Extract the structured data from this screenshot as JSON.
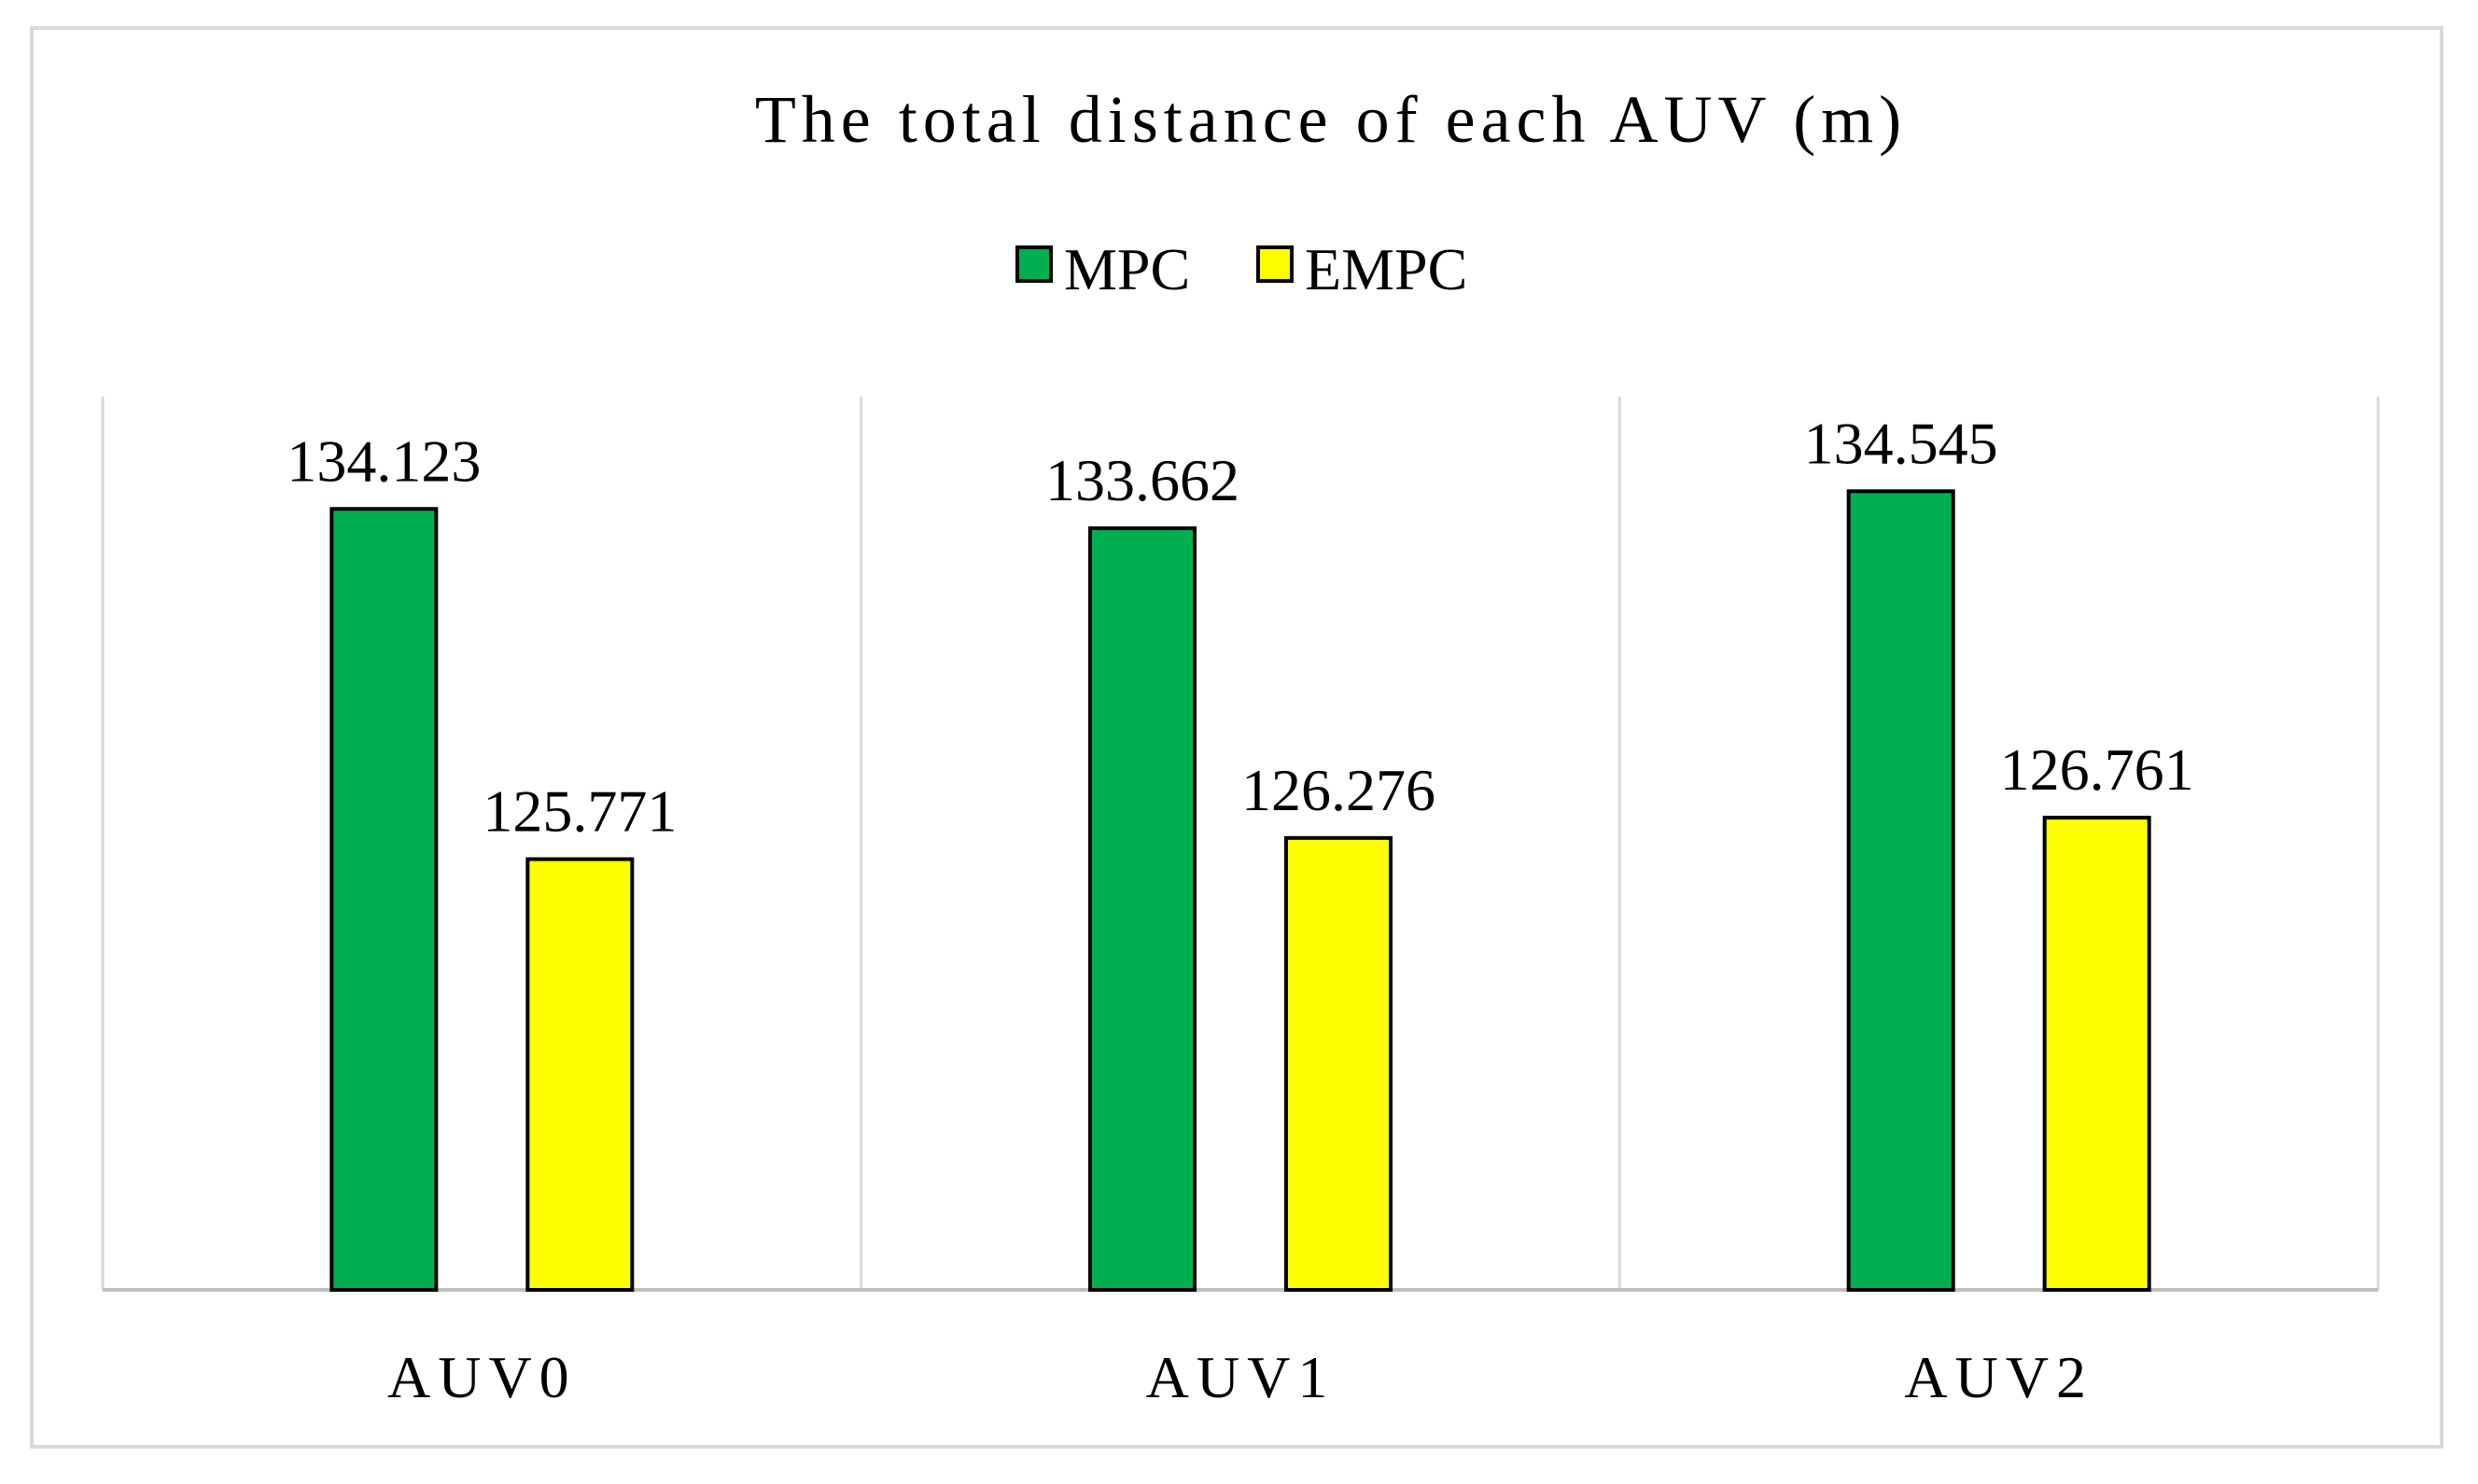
{
  "chart_data": {
    "type": "bar",
    "title": "The total distance of each AUV (m)",
    "categories": [
      "AUV0",
      "AUV1",
      "AUV2"
    ],
    "series": [
      {
        "name": "MPC",
        "color": "#00b050",
        "values": [
          134.123,
          133.662,
          134.545
        ],
        "labels": [
          "134.123",
          "133.662",
          "134.545"
        ]
      },
      {
        "name": "EMPC",
        "color": "#ffff00",
        "values": [
          125.771,
          126.276,
          126.761
        ],
        "labels": [
          "125.771",
          "126.276",
          "126.761"
        ]
      }
    ],
    "xlabel": "",
    "ylabel": "",
    "ylim": [
      115.5,
      136.8
    ],
    "y_axis_visible": false,
    "grid": "vertical category separators",
    "legend_position": "top-center",
    "data_labels": true
  }
}
